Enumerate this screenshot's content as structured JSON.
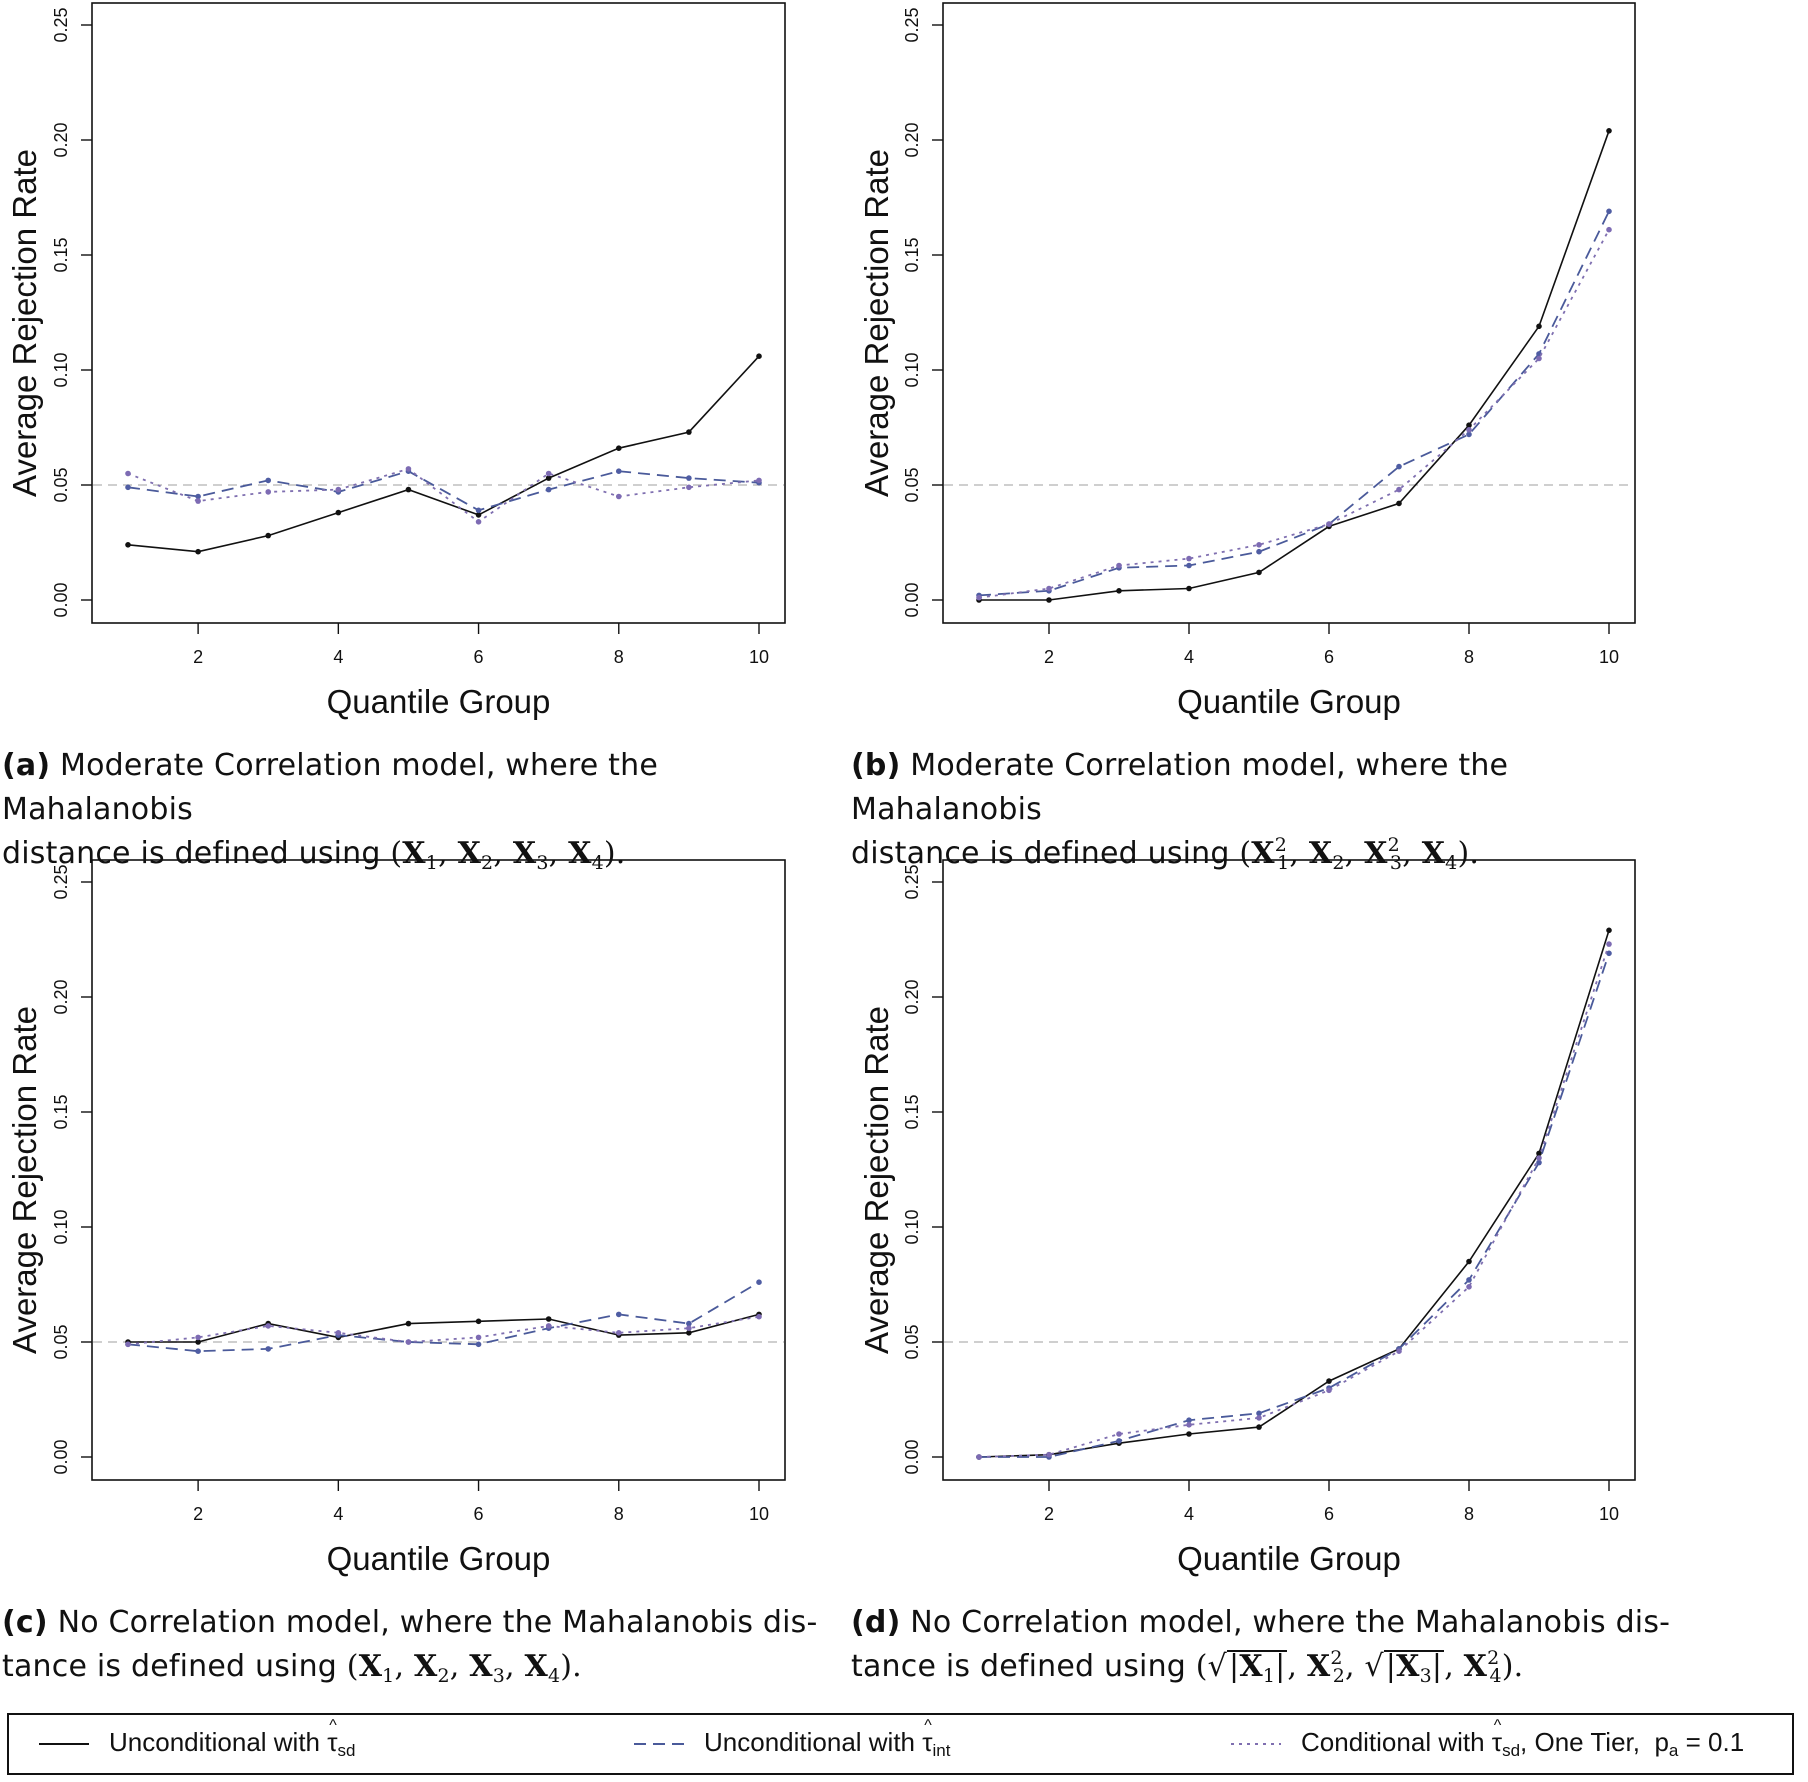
{
  "chart_data": [
    {
      "id": "a",
      "type": "line",
      "ylabel": "Average Rejection Rate",
      "xlabel": "Quantile Group",
      "xlim": [
        1,
        10
      ],
      "ylim": [
        0,
        0.25
      ],
      "xticks": [
        "2",
        "4",
        "6",
        "8",
        "10"
      ],
      "yticks": [
        "0.00",
        "0.05",
        "0.10",
        "0.15",
        "0.20",
        "0.25"
      ],
      "reference_line": 0.05,
      "x": [
        1,
        2,
        3,
        4,
        5,
        6,
        7,
        8,
        9,
        10
      ],
      "series": [
        {
          "name": "Unconditional with τsd",
          "values": [
            0.024,
            0.021,
            0.028,
            0.038,
            0.048,
            0.037,
            0.053,
            0.066,
            0.073,
            0.106
          ]
        },
        {
          "name": "Unconditional with τint",
          "values": [
            0.049,
            0.045,
            0.052,
            0.047,
            0.056,
            0.039,
            0.048,
            0.056,
            0.053,
            0.051
          ]
        },
        {
          "name": "Conditional with τsd, One Tier, pa = 0.1",
          "values": [
            0.055,
            0.043,
            0.047,
            0.048,
            0.057,
            0.034,
            0.055,
            0.045,
            0.049,
            0.052
          ]
        }
      ]
    },
    {
      "id": "b",
      "type": "line",
      "ylabel": "Average Rejection Rate",
      "xlabel": "Quantile Group",
      "xlim": [
        1,
        10
      ],
      "ylim": [
        0,
        0.25
      ],
      "xticks": [
        "2",
        "4",
        "6",
        "8",
        "10"
      ],
      "yticks": [
        "0.00",
        "0.05",
        "0.10",
        "0.15",
        "0.20",
        "0.25"
      ],
      "reference_line": 0.05,
      "x": [
        1,
        2,
        3,
        4,
        5,
        6,
        7,
        8,
        9,
        10
      ],
      "series": [
        {
          "name": "Unconditional with τsd",
          "values": [
            0.0,
            0.0,
            0.004,
            0.005,
            0.012,
            0.032,
            0.042,
            0.076,
            0.119,
            0.204
          ]
        },
        {
          "name": "Unconditional with τint",
          "values": [
            0.002,
            0.004,
            0.014,
            0.015,
            0.021,
            0.033,
            0.058,
            0.072,
            0.107,
            0.169
          ]
        },
        {
          "name": "Conditional with τsd, One Tier, pa = 0.1",
          "values": [
            0.001,
            0.005,
            0.015,
            0.018,
            0.024,
            0.033,
            0.048,
            0.074,
            0.105,
            0.161
          ]
        }
      ]
    },
    {
      "id": "c",
      "type": "line",
      "ylabel": "Average Rejection Rate",
      "xlabel": "Quantile Group",
      "xlim": [
        1,
        10
      ],
      "ylim": [
        0,
        0.25
      ],
      "xticks": [
        "2",
        "4",
        "6",
        "8",
        "10"
      ],
      "yticks": [
        "0.00",
        "0.05",
        "0.10",
        "0.15",
        "0.20",
        "0.25"
      ],
      "reference_line": 0.05,
      "x": [
        1,
        2,
        3,
        4,
        5,
        6,
        7,
        8,
        9,
        10
      ],
      "series": [
        {
          "name": "Unconditional with τsd",
          "values": [
            0.05,
            0.05,
            0.058,
            0.052,
            0.058,
            0.059,
            0.06,
            0.053,
            0.054,
            0.062
          ]
        },
        {
          "name": "Unconditional with τint",
          "values": [
            0.049,
            0.046,
            0.047,
            0.053,
            0.05,
            0.049,
            0.056,
            0.062,
            0.058,
            0.076
          ]
        },
        {
          "name": "Conditional with τsd, One Tier, pa = 0.1",
          "values": [
            0.049,
            0.052,
            0.057,
            0.054,
            0.05,
            0.052,
            0.057,
            0.054,
            0.056,
            0.061
          ]
        }
      ]
    },
    {
      "id": "d",
      "type": "line",
      "ylabel": "Average Rejection Rate",
      "xlabel": "Quantile Group",
      "xlim": [
        1,
        10
      ],
      "ylim": [
        0,
        0.25
      ],
      "xticks": [
        "2",
        "4",
        "6",
        "8",
        "10"
      ],
      "yticks": [
        "0.00",
        "0.05",
        "0.10",
        "0.15",
        "0.20",
        "0.25"
      ],
      "reference_line": 0.05,
      "x": [
        1,
        2,
        3,
        4,
        5,
        6,
        7,
        8,
        9,
        10
      ],
      "series": [
        {
          "name": "Unconditional with τsd",
          "values": [
            0.0,
            0.001,
            0.006,
            0.01,
            0.013,
            0.033,
            0.047,
            0.085,
            0.132,
            0.229
          ]
        },
        {
          "name": "Unconditional with τint",
          "values": [
            0.0,
            0.0,
            0.007,
            0.016,
            0.019,
            0.03,
            0.047,
            0.077,
            0.128,
            0.219
          ]
        },
        {
          "name": "Conditional with τsd, One Tier, pa = 0.1",
          "values": [
            0.0,
            0.001,
            0.01,
            0.014,
            0.017,
            0.029,
            0.046,
            0.074,
            0.13,
            0.223
          ]
        }
      ]
    }
  ],
  "captions": {
    "a": {
      "label": "(a)",
      "line1": "Moderate Correlation model, where the Mahalanobis",
      "line2": "distance is defined using"
    },
    "b": {
      "label": "(b)",
      "line1": "Moderate Correlation model, where the Mahalanobis",
      "line2": "distance is defined using"
    },
    "c": {
      "label": "(c)",
      "line1": "No Correlation model, where the Mahalanobis dis-",
      "line2": "tance is defined using"
    },
    "d": {
      "label": "(d)",
      "line1": "No Correlation model, where the Mahalanobis dis-",
      "line2": "tance is defined using"
    }
  },
  "legend": {
    "item1": {
      "text": "Unconditional with",
      "sub": "sd"
    },
    "item2": {
      "text": "Unconditional with",
      "sub": "int"
    },
    "item3": {
      "text": "Conditional with",
      "sub": "sd",
      "suffix": ", One Tier,",
      "pa": "p",
      "pa_sub": "a",
      "pa_value": " = 0.1"
    }
  },
  "colors": {
    "series": [
      "#111111",
      "#4a5a9a",
      "#7f6fb0"
    ],
    "markers": [
      "#111111",
      "#4f5da3",
      "#7d6bb3"
    ],
    "reference": "#bfbfbf",
    "axis": "#111111"
  }
}
